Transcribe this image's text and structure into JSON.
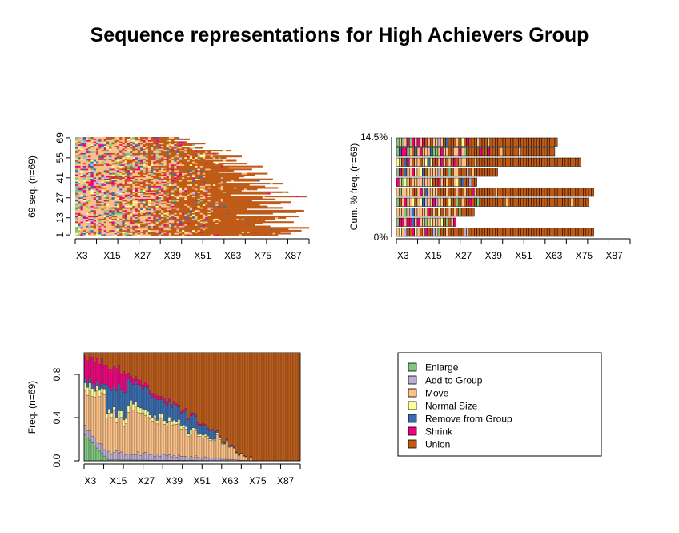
{
  "title": "Sequence representations for High Achievers Group",
  "alphabet": [
    {
      "label": "Enlarge",
      "color": "#7fc97f"
    },
    {
      "label": "Add to Group",
      "color": "#beaed4"
    },
    {
      "label": "Move",
      "color": "#fdc086"
    },
    {
      "label": "Normal Size",
      "color": "#ffff99"
    },
    {
      "label": "Remove from Group",
      "color": "#386cb0"
    },
    {
      "label": "Shrink",
      "color": "#f0027f"
    },
    {
      "label": "Union",
      "color": "#bf5b17"
    }
  ],
  "chart_data": [
    {
      "id": "index-plot",
      "type": "heatmap",
      "ylabel": "69 seq. (n=69)",
      "x_tick_labels": [
        "X3",
        "X15",
        "X27",
        "X39",
        "X51",
        "X63",
        "X75",
        "X87"
      ],
      "y_tick_labels": [
        "1",
        "13",
        "27",
        "41",
        "55",
        "69"
      ],
      "y_ticks": [
        1,
        13,
        27,
        41,
        55,
        69
      ],
      "n_positions": 90,
      "n_sequences": 69,
      "sequence_lengths": [
        78,
        83,
        79,
        87,
        82,
        90,
        75,
        69,
        72,
        84,
        73,
        77,
        81,
        86,
        62,
        76,
        85,
        88,
        66,
        80,
        74,
        71,
        79,
        83,
        68,
        77,
        72,
        89,
        60,
        75,
        82,
        64,
        70,
        78,
        73,
        67,
        80,
        58,
        71,
        76,
        63,
        65,
        69,
        74,
        55,
        61,
        68,
        59,
        72,
        57,
        66,
        53,
        62,
        50,
        58,
        64,
        47,
        55,
        52,
        60,
        45,
        49,
        41,
        46,
        50,
        43,
        38,
        44,
        40
      ],
      "note": "Each row is one sequence of states coloured by the alphabet; sequence lengths are read approximately from the figure."
    },
    {
      "id": "frequency-plot",
      "type": "bar",
      "ylabel": "Cum. % freq. (n=69)",
      "y_tick_labels": [
        "0%",
        "14.5%"
      ],
      "x_tick_labels": [
        "X3",
        "X15",
        "X27",
        "X39",
        "X51",
        "X63",
        "X75",
        "X87"
      ],
      "n_positions": 90,
      "series": [
        {
          "length": 76
        },
        {
          "length": 23
        },
        {
          "length": 30
        },
        {
          "length": 74
        },
        {
          "length": 76
        },
        {
          "length": 31
        },
        {
          "length": 39
        },
        {
          "length": 71
        },
        {
          "length": 61
        },
        {
          "length": 62
        }
      ]
    },
    {
      "id": "state-distribution",
      "type": "bar",
      "ylabel": "Freq. (n=69)",
      "y_tick_labels": [
        "0.0",
        "0.4",
        "0.8"
      ],
      "y_ticks": [
        0,
        0.4,
        0.8
      ],
      "ylim": [
        0,
        1
      ],
      "x_tick_labels": [
        "X3",
        "X15",
        "X27",
        "X39",
        "X51",
        "X63",
        "X75",
        "X87"
      ],
      "n_positions": 90,
      "union_share_start": 0.03,
      "union_share_end": 1.0,
      "remove_share_peak": 0.12,
      "shrink_share_start": 0.15,
      "enlarge_share_start": 0.25,
      "add_share_start": 0.08
    }
  ]
}
